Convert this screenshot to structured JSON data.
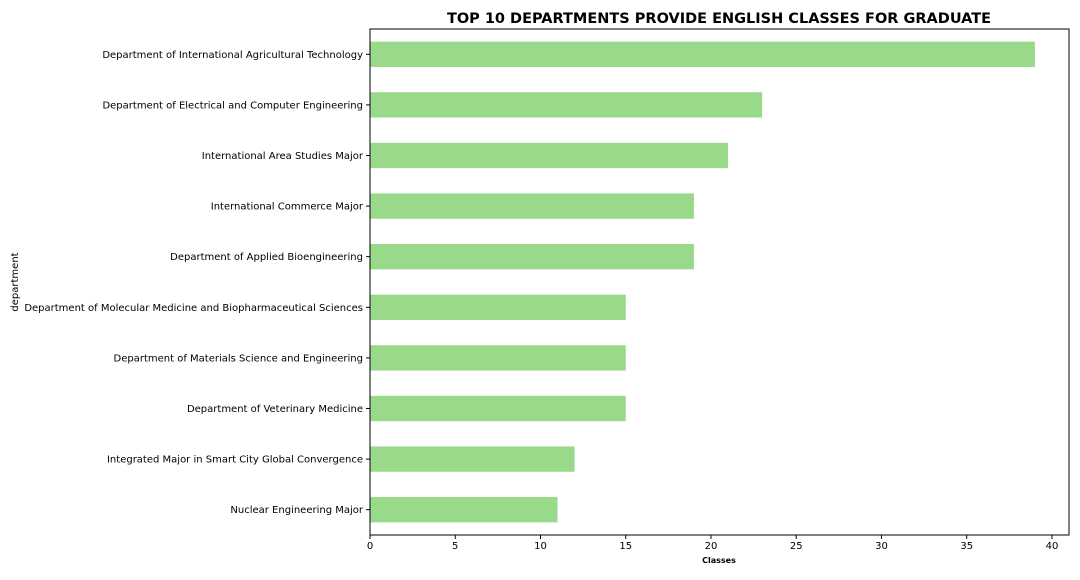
{
  "chart_data": {
    "type": "bar",
    "orientation": "horizontal",
    "title": "TOP 10 DEPARTMENTS PROVIDE ENGLISH CLASSES FOR GRADUATE",
    "xlabel": "Classes",
    "ylabel": "department",
    "categories": [
      "Department of International Agricultural Technology",
      "Department of Electrical and Computer Engineering",
      "International Area Studies Major",
      "International Commerce Major",
      "Department of Applied Bioengineering",
      "Department of Molecular Medicine and Biopharmaceutical Sciences",
      "Department of Materials Science and Engineering",
      "Department of Veterinary Medicine",
      "Integrated Major in Smart City Global Convergence",
      "Nuclear Engineering Major"
    ],
    "values": [
      39,
      23,
      21,
      19,
      19,
      15,
      15,
      15,
      12,
      11
    ],
    "xlim": [
      0,
      41
    ],
    "xticks": [
      0,
      5,
      10,
      15,
      20,
      25,
      30,
      35,
      40
    ],
    "grid": false,
    "legend": "none",
    "bar_color": "#98d98a"
  }
}
